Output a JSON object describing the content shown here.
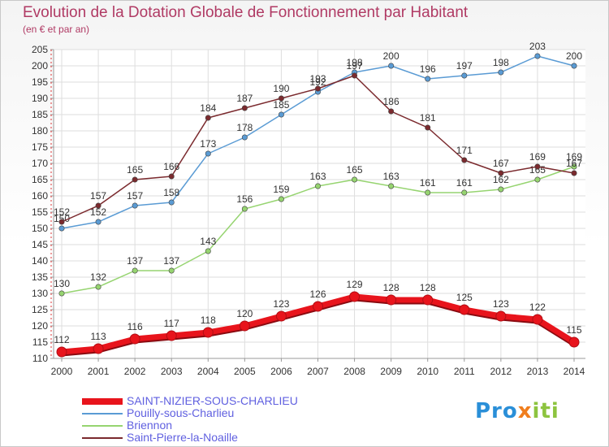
{
  "chart_data": {
    "type": "line",
    "title": "Evolution de la Dotation Globale de Fonctionnement par Habitant",
    "subtitle": "(en € et par an)",
    "xlabel": "",
    "ylabel": "",
    "x": [
      "2000",
      "2001",
      "2002",
      "2003",
      "2004",
      "2005",
      "2006",
      "2007",
      "2008",
      "2009",
      "2010",
      "2011",
      "2012",
      "2013",
      "2014"
    ],
    "ylim": [
      110,
      205
    ],
    "yticks": [
      110,
      115,
      120,
      125,
      130,
      135,
      140,
      145,
      150,
      155,
      160,
      165,
      170,
      175,
      180,
      185,
      190,
      195,
      200,
      205
    ],
    "grid": true,
    "legend_position": "bottom-left",
    "series": [
      {
        "name": "SAINT-NIZIER-SOUS-CHARLIEU",
        "color": "#e8141c",
        "values": [
          112,
          113,
          116,
          117,
          118,
          120,
          123,
          126,
          129,
          128,
          128,
          125,
          123,
          122,
          115
        ]
      },
      {
        "name": "Pouilly-sous-Charlieu",
        "color": "#5a9bd4",
        "values": [
          150,
          152,
          157,
          158,
          173,
          178,
          185,
          192,
          198,
          200,
          196,
          197,
          198,
          203,
          200
        ]
      },
      {
        "name": "Briennon",
        "color": "#96d470",
        "values": [
          130,
          132,
          137,
          137,
          143,
          156,
          159,
          163,
          165,
          163,
          161,
          161,
          162,
          165,
          169
        ]
      },
      {
        "name": "Saint-Pierre-la-Noaille",
        "color": "#7b2a2e",
        "values": [
          152,
          157,
          165,
          166,
          184,
          187,
          190,
          193,
          197,
          186,
          181,
          171,
          167,
          169,
          167
        ]
      }
    ]
  },
  "branding": {
    "part1": "Pro",
    "part2": "x",
    "part3": "iti"
  }
}
